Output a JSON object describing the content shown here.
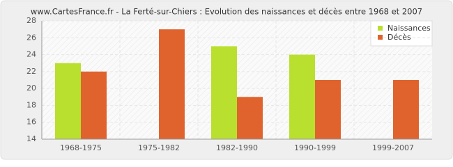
{
  "chart_data": {
    "type": "bar",
    "title": "www.CartesFrance.fr - La Ferté-sur-Chiers : Evolution des naissances et décès entre 1968 et 2007",
    "categories": [
      "1968-1975",
      "1975-1982",
      "1982-1990",
      "1990-1999",
      "1999-2007"
    ],
    "series": [
      {
        "name": "Naissances",
        "color": "#b9e02e",
        "values": [
          23,
          14,
          25,
          24,
          14
        ]
      },
      {
        "name": "Décès",
        "color": "#e0632e",
        "values": [
          22,
          27,
          19,
          21,
          21
        ]
      }
    ],
    "ylim": [
      14,
      28
    ],
    "yticks": [
      14,
      16,
      18,
      20,
      22,
      24,
      26,
      28
    ],
    "grid": true,
    "legend": "top-right"
  }
}
